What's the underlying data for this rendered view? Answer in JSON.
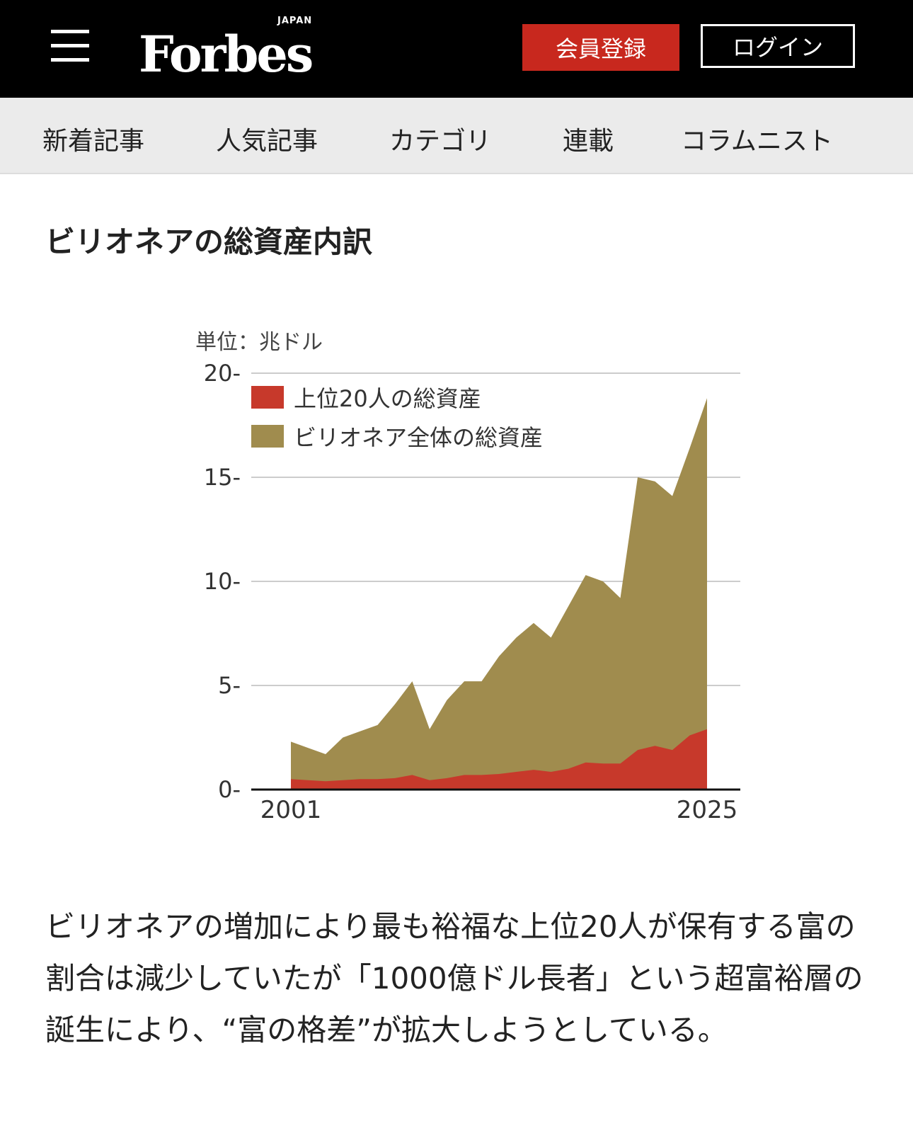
{
  "header": {
    "logo": "Forbes",
    "logo_sub": "JAPAN",
    "register": "会員登録",
    "login": "ログイン"
  },
  "nav": [
    "新着記事",
    "人気記事",
    "カテゴリ",
    "連載",
    "コラムニスト"
  ],
  "title": "ビリオネアの総資産内訳",
  "chart_data": {
    "type": "area",
    "unit_label": "単位：兆ドル",
    "x": [
      2001,
      2002,
      2003,
      2004,
      2005,
      2006,
      2007,
      2008,
      2009,
      2010,
      2011,
      2012,
      2013,
      2014,
      2015,
      2016,
      2017,
      2018,
      2019,
      2020,
      2021,
      2022,
      2023,
      2024,
      2025
    ],
    "x_tick_labels": [
      "2001",
      "2025"
    ],
    "y_ticks": [
      0,
      5,
      10,
      15,
      20
    ],
    "ylim": [
      0,
      20
    ],
    "grid": true,
    "legend_position": "top-left",
    "series": [
      {
        "name": "上位20人の総資産",
        "color": "#c7392b",
        "values": [
          0.5,
          0.45,
          0.4,
          0.45,
          0.5,
          0.5,
          0.55,
          0.7,
          0.45,
          0.55,
          0.7,
          0.7,
          0.75,
          0.85,
          0.95,
          0.85,
          1.0,
          1.3,
          1.25,
          1.25,
          1.9,
          2.1,
          1.9,
          2.6,
          2.9
        ]
      },
      {
        "name": "ビリオネア全体の総資産",
        "color": "#a08c4e",
        "values": [
          2.3,
          2.0,
          1.7,
          2.5,
          2.8,
          3.1,
          4.1,
          5.2,
          2.9,
          4.3,
          5.2,
          5.2,
          6.4,
          7.3,
          8.0,
          7.3,
          8.8,
          10.3,
          10.0,
          9.2,
          15.0,
          14.8,
          14.1,
          16.4,
          18.8
        ]
      }
    ]
  },
  "paragraph": "ビリオネアの増加により最も裕福な上位20人が保有する富の割合は減少していたが「1000億ドル長者」という超富裕層の誕生により、“富の格差”が拡大しようとしている。"
}
